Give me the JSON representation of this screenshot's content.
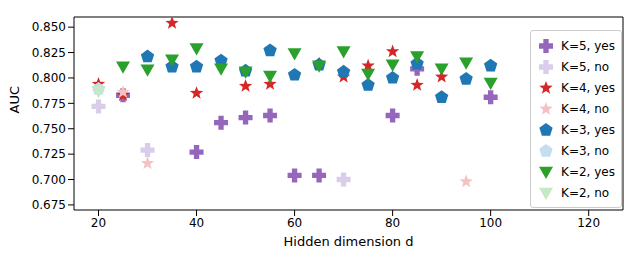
{
  "chart_data": {
    "type": "scatter",
    "x_label": "Hidden dimension d",
    "y_label": "AUC",
    "xlim": [
      15,
      127
    ],
    "xticks": [
      20,
      40,
      60,
      80,
      100,
      120
    ],
    "ylim": [
      0.67,
      0.86
    ],
    "yticks": [
      0.675,
      {
        "value": 0.7,
        "label": "0.700"
      },
      0.725,
      {
        "value": 0.75,
        "label": "0.750"
      },
      0.775,
      {
        "value": 0.8,
        "label": "0.800"
      },
      0.825,
      {
        "value": 0.85,
        "label": "0.850"
      }
    ],
    "grid": false,
    "legend": "right",
    "series": [
      {
        "name": "K=5, yes",
        "color": "#9467bd",
        "marker": "plus",
        "x": [
          25,
          40,
          45,
          50,
          55,
          60,
          65,
          80,
          85,
          100
        ],
        "values": [
          0.783,
          0.727,
          0.756,
          0.761,
          0.763,
          0.704,
          0.704,
          0.763,
          0.809,
          0.781
        ]
      },
      {
        "name": "K=5, no",
        "color": "#d9cdea",
        "marker": "plus",
        "x": [
          20,
          30,
          70
        ],
        "values": [
          0.772,
          0.729,
          0.7
        ]
      },
      {
        "name": "K=4, yes",
        "color": "#d62728",
        "marker": "star",
        "x": [
          20,
          25,
          35,
          40,
          50,
          55,
          65,
          70,
          75,
          80,
          85,
          90
        ],
        "values": [
          0.794,
          0.783,
          0.854,
          0.785,
          0.792,
          0.794,
          0.814,
          0.801,
          0.812,
          0.826,
          0.793,
          0.801
        ]
      },
      {
        "name": "K=4, no",
        "color": "#f4c2c2",
        "marker": "star",
        "x": [
          25,
          30,
          95
        ],
        "values": [
          0.786,
          0.716,
          0.698
        ]
      },
      {
        "name": "K=3, yes",
        "color": "#1f77b4",
        "marker": "pentagon",
        "x": [
          30,
          35,
          40,
          45,
          50,
          55,
          60,
          65,
          70,
          75,
          80,
          85,
          90,
          95,
          100
        ],
        "values": [
          0.821,
          0.811,
          0.811,
          0.817,
          0.807,
          0.827,
          0.803,
          0.813,
          0.806,
          0.793,
          0.8,
          0.814,
          0.781,
          0.799,
          0.812
        ]
      },
      {
        "name": "K=3, no",
        "color": "#c6dcef",
        "marker": "pentagon",
        "x": [
          20
        ],
        "values": [
          0.789
        ]
      },
      {
        "name": "K=2, yes",
        "color": "#2ca02c",
        "marker": "triangle-down",
        "x": [
          25,
          30,
          35,
          40,
          45,
          50,
          55,
          60,
          65,
          70,
          75,
          80,
          85,
          90,
          95,
          100
        ],
        "values": [
          0.811,
          0.808,
          0.818,
          0.829,
          0.809,
          0.806,
          0.802,
          0.824,
          0.812,
          0.826,
          0.804,
          0.813,
          0.821,
          0.809,
          0.815,
          0.795
        ]
      },
      {
        "name": "K=2, no",
        "color": "#c7e8c7",
        "marker": "triangle-down",
        "x": [
          20
        ],
        "values": [
          0.787
        ]
      }
    ]
  }
}
